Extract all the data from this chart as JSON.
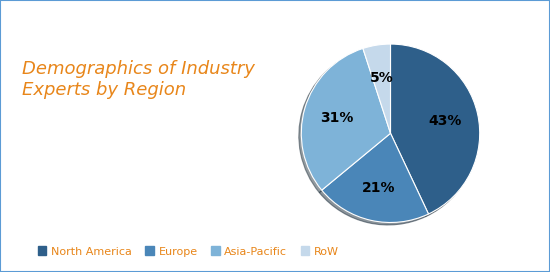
{
  "title": "Demographics of Industry\nExperts by Region",
  "title_color": "#E8861A",
  "title_fontsize": 13,
  "slices": [
    43,
    21,
    31,
    5
  ],
  "labels": [
    "North America",
    "Europe",
    "Asia-Pacific",
    "RoW"
  ],
  "colors": [
    "#2E5F8A",
    "#4A86B8",
    "#7EB3D8",
    "#C5D9EB"
  ],
  "pct_labels": [
    "43%",
    "21%",
    "31%",
    "5%"
  ],
  "startangle": 90,
  "legend_text_color": "#E8861A",
  "background_color": "#FFFFFF",
  "border_color": "#5B9BD5"
}
